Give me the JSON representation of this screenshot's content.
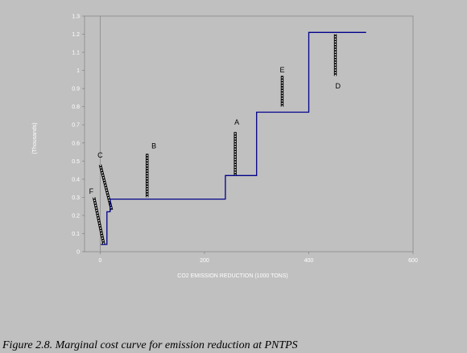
{
  "caption": "Figure 2.8. Marginal cost curve for emission reduction at PNTPS",
  "chart_data": {
    "type": "line",
    "xlabel": "CO2 EMISSION REDUCTION (1000 TONS)",
    "ylabel": "(Thousands)",
    "xlim": [
      -30,
      600
    ],
    "ylim": [
      0,
      1.3
    ],
    "xticks": [
      {
        "value": 0,
        "label": "0"
      },
      {
        "value": 200,
        "label": "200"
      },
      {
        "value": 400,
        "label": "400"
      },
      {
        "value": 600,
        "label": "600"
      }
    ],
    "yticks": [
      {
        "value": 0,
        "label": "0"
      },
      {
        "value": 0.1,
        "label": "0.1"
      },
      {
        "value": 0.2,
        "label": "0.2"
      },
      {
        "value": 0.3,
        "label": "0.3"
      },
      {
        "value": 0.4,
        "label": "0.4"
      },
      {
        "value": 0.5,
        "label": "0.5"
      },
      {
        "value": 0.6,
        "label": "0.6"
      },
      {
        "value": 0.7,
        "label": "0.7"
      },
      {
        "value": 0.8,
        "label": "0.8"
      },
      {
        "value": 0.9,
        "label": "0.9"
      },
      {
        "value": 1.0,
        "label": "1"
      },
      {
        "value": 1.1,
        "label": "1.1"
      },
      {
        "value": 1.2,
        "label": "1.2"
      },
      {
        "value": 1.3,
        "label": "1.3"
      }
    ],
    "series": [
      {
        "color": "#00008b",
        "step_points": [
          [
            1,
            0.04
          ],
          [
            13,
            0.04
          ],
          [
            13,
            0.22
          ],
          [
            19,
            0.22
          ],
          [
            19,
            0.29
          ],
          [
            240,
            0.29
          ],
          [
            240,
            0.42
          ],
          [
            300,
            0.42
          ],
          [
            300,
            0.77
          ],
          [
            400,
            0.77
          ],
          [
            400,
            1.21
          ],
          [
            510,
            1.21
          ]
        ]
      }
    ],
    "zero_line_x": 0,
    "annotations": [
      {
        "label": "A",
        "x": 259,
        "y_from": 0.42,
        "y_to": 0.66,
        "label_x": 262,
        "label_y": 0.7
      },
      {
        "label": "B",
        "x": 90,
        "y_from": 0.3,
        "y_to": 0.54,
        "label_x": 103,
        "label_y": 0.57
      },
      {
        "label": "C",
        "x_from": 0,
        "y_from": 0.48,
        "x_to": 22,
        "y_to": 0.23,
        "label_x": 0,
        "label_y": 0.52
      },
      {
        "label": "D",
        "x": 451,
        "y_from": 0.97,
        "y_to": 1.2,
        "label_x": 456,
        "label_y": 0.9
      },
      {
        "label": "E",
        "x": 349,
        "y_from": 0.8,
        "y_to": 0.97,
        "label_x": 349,
        "label_y": 0.99
      },
      {
        "label": "F",
        "x_from": -12,
        "y_from": 0.3,
        "x_to": 7,
        "y_to": 0.04,
        "label_x": -17,
        "label_y": 0.32
      }
    ]
  }
}
